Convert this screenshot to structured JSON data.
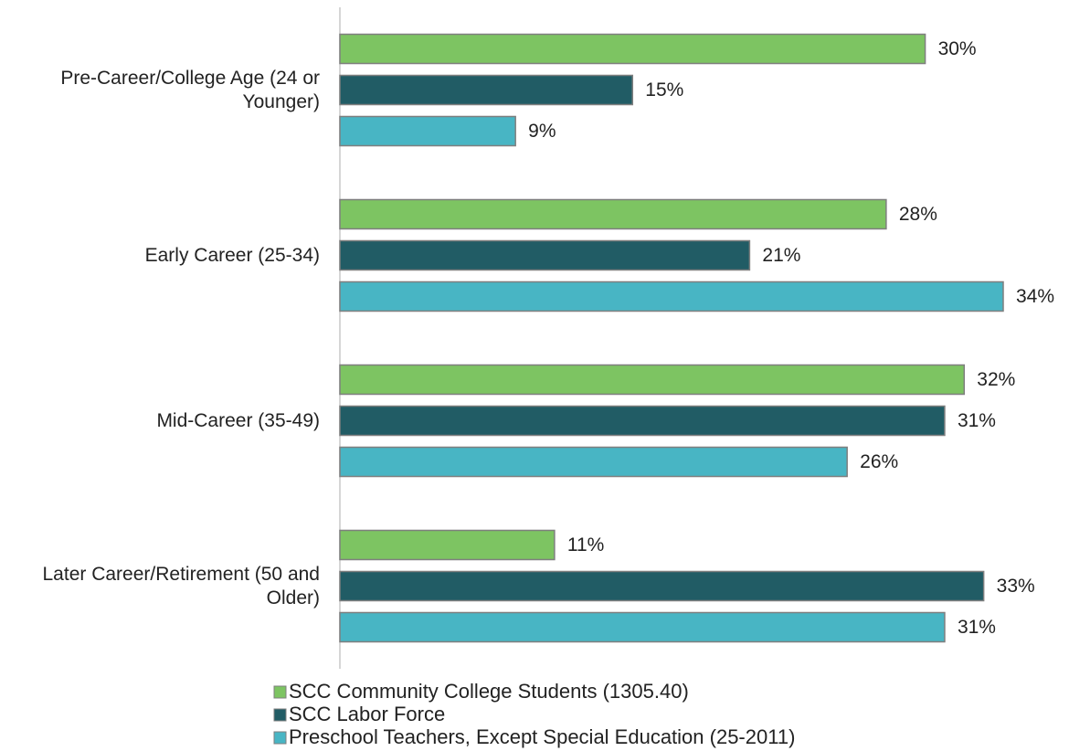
{
  "chart_data": {
    "type": "bar",
    "orientation": "horizontal",
    "categories": [
      "Pre-Career/College Age (24 or Younger)",
      "Early Career (25-34)",
      "Mid-Career (35-49)",
      "Later Career/Retirement (50 and Older)"
    ],
    "series": [
      {
        "name": "SCC Community College Students (1305.40)",
        "color": "#7dc462",
        "values": [
          30,
          28,
          32,
          11
        ],
        "value_labels": [
          "30%",
          "28%",
          "32%",
          "11%"
        ]
      },
      {
        "name": "SCC Labor Force",
        "color": "#215c65",
        "values": [
          15,
          21,
          31,
          33
        ],
        "value_labels": [
          "15%",
          "21%",
          "31%",
          "33%"
        ]
      },
      {
        "name": "Preschool Teachers, Except Special Education (25-2011)",
        "color": "#48b5c4",
        "values": [
          9,
          34,
          26,
          31
        ],
        "value_labels": [
          "9%",
          "34%",
          "26%",
          "31%"
        ]
      }
    ],
    "legend": "bottom"
  }
}
